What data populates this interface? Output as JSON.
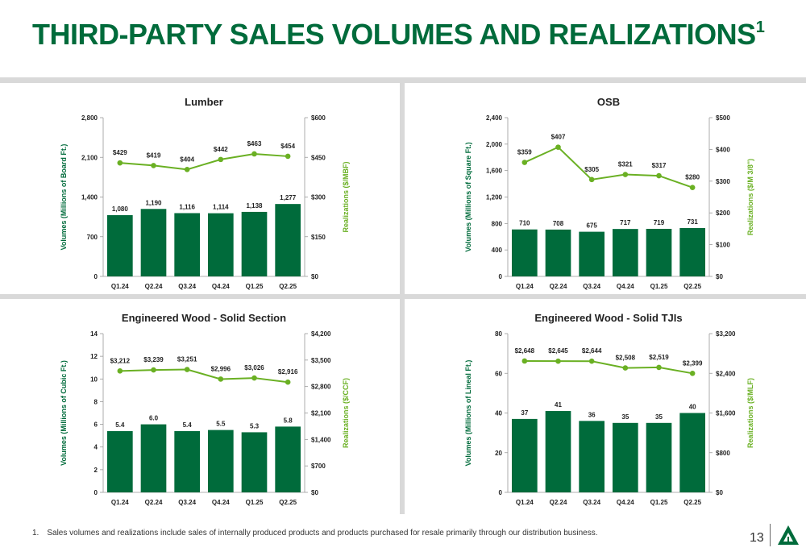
{
  "page": {
    "title": "THIRD-PARTY SALES VOLUMES AND REALIZATIONS",
    "title_superscript": "1",
    "footnote_number": "1.",
    "footnote_text": "Sales volumes and realizations include sales of internally produced products and products purchased for resale primarily through our distribution business.",
    "page_number": "13",
    "colors": {
      "title": "#006b3b",
      "bar": "#006b3b",
      "line": "#6ab023",
      "divider": "#d9d9d9"
    }
  },
  "chart_data": [
    {
      "type": "bar+line",
      "title": "Lumber",
      "categories": [
        "Q1.24",
        "Q2.24",
        "Q3.24",
        "Q4.24",
        "Q1.25",
        "Q2.25"
      ],
      "bars": {
        "name": "Volumes",
        "values": [
          1080,
          1190,
          1116,
          1114,
          1138,
          1277
        ],
        "labels": [
          "1,080",
          "1,190",
          "1,116",
          "1,114",
          "1,138",
          "1,277"
        ]
      },
      "line": {
        "name": "Realizations",
        "values": [
          429,
          419,
          404,
          442,
          463,
          454
        ],
        "labels": [
          "$429",
          "$419",
          "$404",
          "$442",
          "$463",
          "$454"
        ]
      },
      "ylabel_left": "Volumes (Millions of Board Ft.)",
      "ylabel_right": "Realizations ($/MBF)",
      "ylim_left": [
        0,
        2800
      ],
      "ylim_right": [
        0,
        600
      ],
      "yticks_left": [
        "0",
        "700",
        "1,400",
        "2,100",
        "2,800"
      ],
      "yticks_right": [
        "$0",
        "$150",
        "$300",
        "$450",
        "$600"
      ]
    },
    {
      "type": "bar+line",
      "title": "OSB",
      "categories": [
        "Q1.24",
        "Q2.24",
        "Q3.24",
        "Q4.24",
        "Q1.25",
        "Q2.25"
      ],
      "bars": {
        "name": "Volumes",
        "values": [
          710,
          708,
          675,
          717,
          719,
          731
        ],
        "labels": [
          "710",
          "708",
          "675",
          "717",
          "719",
          "731"
        ]
      },
      "line": {
        "name": "Realizations",
        "values": [
          359,
          407,
          305,
          321,
          317,
          280
        ],
        "labels": [
          "$359",
          "$407",
          "$305",
          "$321",
          "$317",
          "$280"
        ]
      },
      "ylabel_left": "Volumes (Millions of Square Ft.)",
      "ylabel_right": "Realizations ($/M 3/8\")",
      "ylim_left": [
        0,
        2400
      ],
      "ylim_right": [
        0,
        500
      ],
      "yticks_left": [
        "0",
        "400",
        "800",
        "1,200",
        "1,600",
        "2,000",
        "2,400"
      ],
      "yticks_right": [
        "$0",
        "$100",
        "$200",
        "$300",
        "$400",
        "$500"
      ]
    },
    {
      "type": "bar+line",
      "title": "Engineered Wood - Solid Section",
      "categories": [
        "Q1.24",
        "Q2.24",
        "Q3.24",
        "Q4.24",
        "Q1.25",
        "Q2.25"
      ],
      "bars": {
        "name": "Volumes",
        "values": [
          5.4,
          6.0,
          5.4,
          5.5,
          5.3,
          5.8
        ],
        "labels": [
          "5.4",
          "6.0",
          "5.4",
          "5.5",
          "5.3",
          "5.8"
        ]
      },
      "line": {
        "name": "Realizations",
        "values": [
          3212,
          3239,
          3251,
          2996,
          3026,
          2916
        ],
        "labels": [
          "$3,212",
          "$3,239",
          "$3,251",
          "$2,996",
          "$3,026",
          "$2,916"
        ]
      },
      "ylabel_left": "Volumes (Millions of Cubic Ft.)",
      "ylabel_right": "Realizations ($/CCF)",
      "ylim_left": [
        0,
        14
      ],
      "ylim_right": [
        0,
        4200
      ],
      "yticks_left": [
        "0",
        "2",
        "4",
        "6",
        "8",
        "10",
        "12",
        "14"
      ],
      "yticks_right": [
        "$0",
        "$700",
        "$1,400",
        "$2,100",
        "$2,800",
        "$3,500",
        "$4,200"
      ]
    },
    {
      "type": "bar+line",
      "title": "Engineered Wood - Solid TJIs",
      "categories": [
        "Q1.24",
        "Q2.24",
        "Q3.24",
        "Q4.24",
        "Q1.25",
        "Q2.25"
      ],
      "bars": {
        "name": "Volumes",
        "values": [
          37,
          41,
          36,
          35,
          35,
          40
        ],
        "labels": [
          "37",
          "41",
          "36",
          "35",
          "35",
          "40"
        ]
      },
      "line": {
        "name": "Realizations",
        "values": [
          2648,
          2645,
          2644,
          2508,
          2519,
          2399
        ],
        "labels": [
          "$2,648",
          "$2,645",
          "$2,644",
          "$2,508",
          "$2,519",
          "$2,399"
        ]
      },
      "ylabel_left": "Volumes (Millions of Lineal Ft.)",
      "ylabel_right": "Realizations ($/MLF)",
      "ylim_left": [
        0,
        80
      ],
      "ylim_right": [
        0,
        3200
      ],
      "yticks_left": [
        "0",
        "20",
        "40",
        "60",
        "80"
      ],
      "yticks_right": [
        "$0",
        "$800",
        "$1,600",
        "$2,400",
        "$3,200"
      ]
    }
  ]
}
